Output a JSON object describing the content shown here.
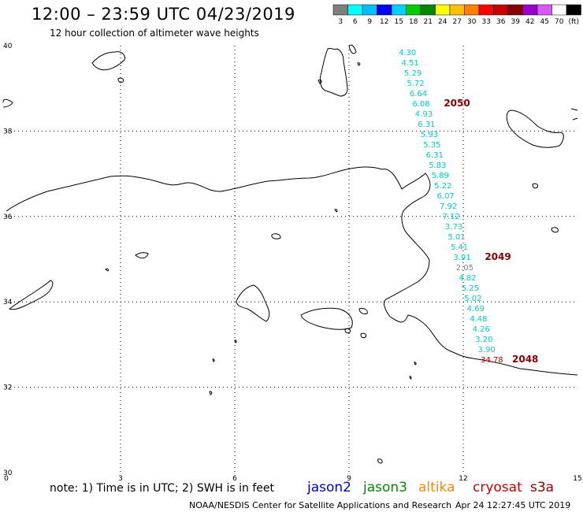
{
  "header": {
    "title": "12:00 – 23:59 UTC 04/23/2019",
    "subtitle": "12 hour collection of altimeter wave heights"
  },
  "legend": {
    "colors": [
      "#7f7f7f",
      "#00ffff",
      "#00bfff",
      "#0000ff",
      "#00d0ff",
      "#00cc00",
      "#008800",
      "#ffff00",
      "#ffc000",
      "#ff8000",
      "#ff0000",
      "#cc0000",
      "#880000",
      "#9900cc",
      "#dd55ff",
      "#ffffff",
      "#000000"
    ],
    "labels": [
      "3",
      "6",
      "9",
      "12",
      "15",
      "18",
      "21",
      "24",
      "27",
      "30",
      "33",
      "36",
      "39",
      "42",
      "45",
      "70",
      "(ft)"
    ]
  },
  "axes": {
    "lat_labels": [
      "40",
      "38",
      "36",
      "34",
      "32",
      "30"
    ],
    "lon_labels": [
      "0",
      "3",
      "6",
      "9",
      "12",
      "15"
    ]
  },
  "track": {
    "values": [
      "4.30",
      "4.51",
      "5.29",
      "5.72",
      "6.64",
      "6.08",
      "4.93",
      "6.31",
      "5.93",
      "5.35",
      "6.31",
      "5.83",
      "5.89",
      "5.22",
      "6.07",
      "7.92",
      "7.12",
      "3.73",
      "5.01",
      "5.41",
      "3.91",
      "2.05",
      "4.82",
      "5.25",
      "5.02",
      "4.69",
      "4.48",
      "4.26",
      "3.20",
      "3.90",
      "34.78"
    ],
    "times": [
      "2050",
      "2049",
      "2048"
    ]
  },
  "footer": {
    "note": "note: 1) Time is in UTC; 2) SWH is in feet",
    "satellites": [
      "jason2",
      "jason3",
      "altika",
      "cryosat",
      "s3a"
    ],
    "satellite_colors": [
      "#0000cc",
      "#008800",
      "#ff8800",
      "#cc0000",
      "#880000"
    ],
    "credit": "NOAA/NESDIS Center for Satellite Applications and Research",
    "generated": "Apr 24 12:27:45 UTC 2019"
  },
  "colors": {
    "swh_label": "#00cccc",
    "swh_low": "#7f7f7f",
    "swh_high": "#cc0000",
    "time_label": "#880000",
    "coast": "#000000",
    "grid": "#000000"
  }
}
